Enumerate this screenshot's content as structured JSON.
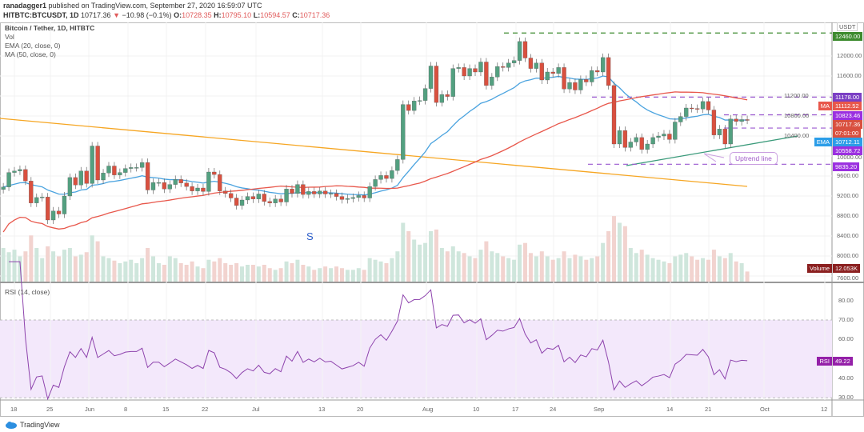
{
  "header": {
    "publisher": "ranadagger1",
    "published_text": "published on TradingView.com, September 27, 2020 16:59:07 UTC",
    "symbol": "HITBTC:BTCUSDT, 1D",
    "last": "10717.36",
    "change": "−10.98 (−0.1%)",
    "o_label": "O:",
    "o": "10728.35",
    "h_label": "H:",
    "h": "10795.10",
    "l_label": "L:",
    "l": "10594.57",
    "c_label": "C:",
    "c": "10717.36"
  },
  "legend": {
    "title": "Bitcoin / Tether, 1D, HITBTC",
    "vol": "Vol",
    "ema": "EMA (20, close, 0)",
    "ma": "MA (50, close, 0)",
    "rsi": "RSI (14, close)"
  },
  "annotations": {
    "s_marker": "S",
    "uptrend": "Uptrend line"
  },
  "price_labels": {
    "currency": "USDT",
    "top_level": "12460.00",
    "resistance": "11178.00",
    "ma_tag": "MA",
    "ma_value": "11112.52",
    "range_high": "10823.46",
    "last_price": "10717.36",
    "countdown": "07:01:00",
    "ema_tag": "EMA",
    "ema_value": "10712.11",
    "range_low": "10558.72",
    "support": "9835.20",
    "volume_tag": "Volume",
    "volume_value": "12.053K",
    "rsi_tag": "RSI",
    "rsi_value": "49.22"
  },
  "colors": {
    "up": "#53a080",
    "down": "#d9503f",
    "ema": "#4aa3df",
    "ma": "#e8574b",
    "downtrend": "#f6a623",
    "uptrend": "#3a9a7a",
    "levels": "#9b59d0",
    "top_level": "#3d8b2f",
    "rsi": "#8e44ad"
  },
  "footer": {
    "brand": "TradingView"
  },
  "chart_data": {
    "type": "candlestick",
    "start_date": "2020-05-16",
    "interval": "1D",
    "close": [
      9380,
      9670,
      9700,
      9730,
      9500,
      9060,
      9170,
      9180,
      8720,
      8900,
      8840,
      9200,
      9570,
      9420,
      9700,
      9450,
      10200,
      9520,
      9660,
      9800,
      9620,
      9670,
      9750,
      9770,
      9770,
      9870,
      9320,
      9470,
      9470,
      9340,
      9430,
      9530,
      9460,
      9390,
      9300,
      9360,
      9290,
      9680,
      9630,
      9300,
      9250,
      9160,
      9010,
      9120,
      9190,
      9140,
      9240,
      9090,
      9060,
      9140,
      9080,
      9340,
      9250,
      9430,
      9230,
      9290,
      9240,
      9300,
      9240,
      9250,
      9190,
      9130,
      9150,
      9170,
      9210,
      9160,
      9390,
      9530,
      9610,
      9550,
      9710,
      9930,
      11030,
      10910,
      11100,
      11110,
      11350,
      11800,
      11070,
      11230,
      11190,
      11750,
      11770,
      11600,
      11750,
      11680,
      11880,
      11410,
      11580,
      11790,
      11770,
      11860,
      11910,
      12290,
      11960,
      11750,
      11860,
      11520,
      11680,
      11650,
      11770,
      11340,
      11470,
      11320,
      11530,
      11480,
      11710,
      11680,
      11970,
      11410,
      10240,
      10510,
      10170,
      10280,
      10370,
      10130,
      10240,
      10370,
      10400,
      10440,
      10330,
      10680,
      10790,
      10960,
      10950,
      10940,
      11090,
      10920,
      10420,
      10540,
      10240,
      10740,
      10690,
      10728.35,
      10717.36
    ],
    "volume": [
      40,
      35,
      38,
      30,
      36,
      55,
      40,
      28,
      42,
      36,
      30,
      38,
      40,
      30,
      32,
      35,
      55,
      48,
      30,
      28,
      25,
      22,
      24,
      26,
      22,
      28,
      40,
      30,
      22,
      20,
      30,
      28,
      22,
      20,
      24,
      18,
      16,
      26,
      24,
      28,
      22,
      20,
      22,
      18,
      20,
      20,
      18,
      20,
      16,
      14,
      16,
      24,
      22,
      26,
      20,
      18,
      14,
      16,
      18,
      16,
      18,
      16,
      14,
      14,
      16,
      14,
      28,
      26,
      24,
      22,
      28,
      36,
      70,
      60,
      50,
      44,
      46,
      60,
      62,
      40,
      36,
      42,
      36,
      34,
      30,
      28,
      38,
      48,
      36,
      34,
      30,
      28,
      26,
      44,
      46,
      34,
      30,
      36,
      30,
      26,
      28,
      36,
      28,
      32,
      30,
      26,
      28,
      30,
      46,
      60,
      78,
      70,
      66,
      40,
      34,
      38,
      32,
      28,
      26,
      24,
      22,
      30,
      32,
      34,
      30,
      26,
      28,
      26,
      38,
      30,
      28,
      34,
      24,
      22,
      12
    ],
    "indicators": [
      "EMA 20",
      "MA 50",
      "RSI 14"
    ],
    "price_axis": {
      "ticks": [
        "12000.00",
        "11600.00",
        "11200.00",
        "10800.00",
        "10400.00",
        "10000.00",
        "9600.00",
        "9200.00",
        "8800.00",
        "8400.00",
        "8000.00",
        "7600.00"
      ],
      "range": [
        7600,
        12500
      ]
    },
    "rsi_axis": {
      "ticks": [
        "80.00",
        "70.00",
        "60.00",
        "40.00",
        "30.00"
      ],
      "bands": [
        30,
        70
      ]
    },
    "x_ticks": [
      "18",
      "25",
      "Jun",
      "8",
      "15",
      "22",
      "Jul",
      "13",
      "20",
      "Aug",
      "10",
      "17",
      "24",
      "Sep",
      "14",
      "21",
      "Oct",
      "12"
    ],
    "horizontal_levels": [
      12460,
      11178,
      10823.46,
      10558.72,
      9835.2
    ]
  }
}
